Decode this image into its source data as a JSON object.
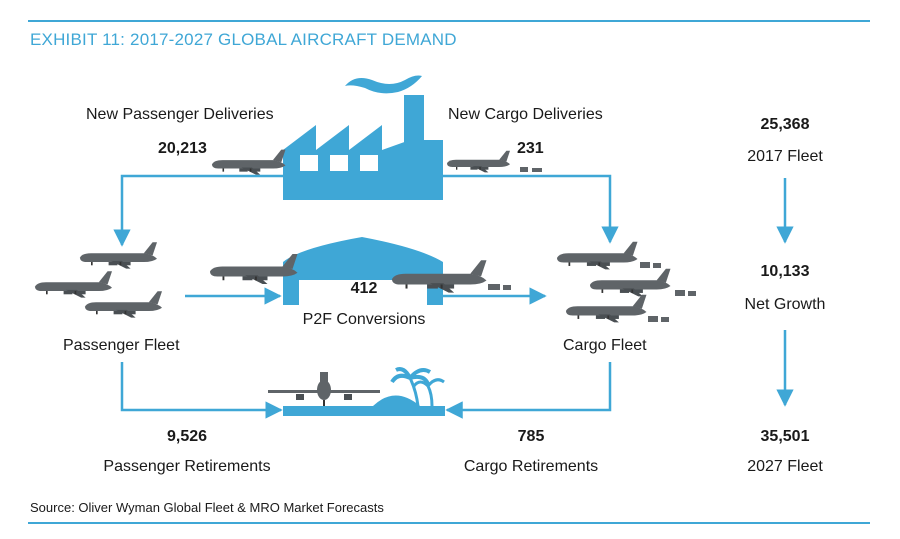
{
  "title": "EXHIBIT 11: 2017-2027 GLOBAL AIRCRAFT DEMAND",
  "new_passenger": {
    "label": "New Passenger Deliveries",
    "value": "20,213"
  },
  "new_cargo": {
    "label": "New Cargo Deliveries",
    "value": "231"
  },
  "p2f": {
    "label": "P2F Conversions",
    "value": "412"
  },
  "passenger_fleet": {
    "label": "Passenger Fleet"
  },
  "cargo_fleet": {
    "label": "Cargo Fleet"
  },
  "passenger_retirements": {
    "label": "Passenger Retirements",
    "value": "9,526"
  },
  "cargo_retirements": {
    "label": "Cargo Retirements",
    "value": "785"
  },
  "fleet_2017": {
    "label": "2017 Fleet",
    "value": "25,368"
  },
  "net_growth": {
    "label": "Net Growth",
    "value": "10,133"
  },
  "fleet_2027": {
    "label": "2027 Fleet",
    "value": "35,501"
  },
  "source": "Source: Oliver Wyman Global Fleet & MRO Market Forecasts",
  "colors": {
    "accent": "#3fa7d6",
    "plane": "#5f6468"
  }
}
